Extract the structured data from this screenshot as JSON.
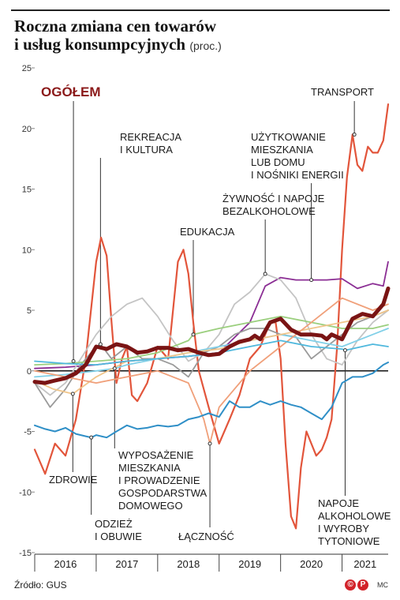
{
  "title_line1": "Roczna zmiana cen towarów",
  "title_line2": "i usług konsumpcyjnych",
  "title_unit": "(proc.)",
  "source": "Źródło: GUS",
  "credit": "MC",
  "chart_data": {
    "type": "line",
    "ylim": [
      -15,
      25
    ],
    "yticks": [
      25,
      20,
      15,
      10,
      5,
      0,
      -5,
      -10,
      -15
    ],
    "x_labels": [
      "2016",
      "2017",
      "2018",
      "2019",
      "2020",
      "2021"
    ],
    "x_start": 2016,
    "x_end": 2021.75,
    "grid": false,
    "series": [
      {
        "name": "TRANSPORT",
        "color": "#e2553b",
        "width": 2.2,
        "label_value": 19.5,
        "label_x": 2021.2,
        "x": [
          2016.0,
          2016.17,
          2016.33,
          2016.5,
          2016.67,
          2016.83,
          2017.0,
          2017.08,
          2017.17,
          2017.25,
          2017.33,
          2017.42,
          2017.5,
          2017.58,
          2017.67,
          2017.83,
          2018.0,
          2018.17,
          2018.33,
          2018.42,
          2018.5,
          2018.58,
          2018.67,
          2018.83,
          2019.0,
          2019.17,
          2019.33,
          2019.5,
          2019.67,
          2019.83,
          2019.92,
          2020.0,
          2020.08,
          2020.17,
          2020.25,
          2020.33,
          2020.42,
          2020.5,
          2020.58,
          2020.67,
          2020.75,
          2020.83,
          2020.92,
          2021.0,
          2021.08,
          2021.17,
          2021.25,
          2021.33,
          2021.42,
          2021.5,
          2021.58,
          2021.67,
          2021.75
        ],
        "y": [
          -6.5,
          -8.5,
          -6,
          -7,
          -4,
          1,
          9,
          11,
          9.5,
          4,
          -1,
          1,
          2,
          -2,
          -2.5,
          -1,
          2,
          1,
          9,
          10,
          8,
          4,
          0,
          -3,
          -6,
          -4,
          -2,
          1,
          2,
          4,
          4,
          1,
          -6,
          -12,
          -13,
          -8,
          -5,
          -6,
          -7,
          -6.5,
          -5.5,
          -4,
          2,
          10,
          16,
          19.5,
          17,
          16.5,
          18.5,
          18,
          18,
          19,
          22
        ]
      },
      {
        "name": "UŻYTKOWANIE MIESZKANIA LUB DOMU I NOŚNIKI ENERGII",
        "color": "#8b2e94",
        "width": 1.8,
        "label_value": 7.5,
        "label_x": 2020.5,
        "x": [
          2016.0,
          2016.5,
          2017.0,
          2017.5,
          2018.0,
          2018.5,
          2019.0,
          2019.5,
          2019.75,
          2020.0,
          2020.25,
          2020.5,
          2020.75,
          2021.0,
          2021.25,
          2021.5,
          2021.67,
          2021.75
        ],
        "y": [
          0.2,
          0.3,
          0.5,
          0.8,
          1.0,
          1.2,
          1.5,
          4.0,
          7.0,
          7.7,
          7.5,
          7.5,
          7.5,
          7.6,
          6.8,
          7.2,
          7.0,
          9.0
        ]
      },
      {
        "name": "ŻYWNOŚĆ I NAPOJE BEZALKOHOLOWE",
        "color": "#c4c4c4",
        "width": 1.8,
        "label_value": 8.0,
        "label_x": 2019.75,
        "x": [
          2016.0,
          2016.25,
          2016.5,
          2016.75,
          2017.0,
          2017.25,
          2017.5,
          2017.75,
          2018.0,
          2018.25,
          2018.5,
          2018.75,
          2019.0,
          2019.25,
          2019.5,
          2019.67,
          2019.75,
          2020.0,
          2020.25,
          2020.5,
          2020.75,
          2021.0,
          2021.25,
          2021.5,
          2021.75
        ],
        "y": [
          -1.0,
          -2.0,
          -1.0,
          1.0,
          3.0,
          4.5,
          5.5,
          6.0,
          4.5,
          2.5,
          0.8,
          1.5,
          3.0,
          5.5,
          6.5,
          7.5,
          8.0,
          7.5,
          6.0,
          3.0,
          1.0,
          0.5,
          2.5,
          4.0,
          5.0
        ]
      },
      {
        "name": "REKREACJA I KULTURA",
        "color": "#9a9a9a",
        "width": 1.8,
        "label_value": 2.2,
        "label_x": 2017.07,
        "x": [
          2016.0,
          2016.25,
          2016.5,
          2016.75,
          2017.0,
          2017.07,
          2017.25,
          2017.5,
          2017.75,
          2018.0,
          2018.25,
          2018.5,
          2018.75,
          2019.0,
          2019.25,
          2019.5,
          2019.75,
          2020.0,
          2020.25,
          2020.5,
          2020.75,
          2021.0,
          2021.25,
          2021.5,
          2021.75
        ],
        "y": [
          -1.0,
          -3.0,
          -1.5,
          0.5,
          2.0,
          2.2,
          1.0,
          2.0,
          1.0,
          1.0,
          0.5,
          -0.5,
          1.5,
          2.0,
          3.0,
          3.5,
          3.5,
          3.0,
          2.8,
          1.0,
          2.0,
          3.0,
          4.0,
          4.5,
          5.0
        ]
      },
      {
        "name": "EDUKACJA",
        "color": "#9bcf7e",
        "width": 1.8,
        "label_value": 3.0,
        "label_x": 2018.58,
        "x": [
          2016.0,
          2016.5,
          2017.0,
          2017.5,
          2018.0,
          2018.5,
          2018.58,
          2019.0,
          2019.5,
          2020.0,
          2020.5,
          2021.0,
          2021.5,
          2021.75
        ],
        "y": [
          0.5,
          0.6,
          0.8,
          1.0,
          1.5,
          2.5,
          3.0,
          3.5,
          4.0,
          4.5,
          4.0,
          3.5,
          3.5,
          3.8
        ]
      },
      {
        "name": "WYPOSAŻENIE MIESZKANIA I PROWADZENIE GOSPODARSTWA DOMOWEGO",
        "color": "#82d0e8",
        "width": 1.8,
        "label_value": 0.2,
        "label_x": 2017.3,
        "x": [
          2016.0,
          2016.5,
          2017.0,
          2017.3,
          2017.5,
          2018.0,
          2018.5,
          2019.0,
          2019.5,
          2020.0,
          2020.5,
          2021.0,
          2021.5,
          2021.75
        ],
        "y": [
          -0.5,
          -0.3,
          0.0,
          0.2,
          0.5,
          1.0,
          1.5,
          2.0,
          2.5,
          3.0,
          2.5,
          2.0,
          3.0,
          3.5
        ]
      },
      {
        "name": "ZDROWIE",
        "color": "#f0c58a",
        "width": 1.8,
        "label_value": -1.9,
        "label_x": 2016.62,
        "x": [
          2016.0,
          2016.3,
          2016.62,
          2017.0,
          2017.5,
          2018.0,
          2018.5,
          2019.0,
          2019.5,
          2020.0,
          2020.5,
          2021.0,
          2021.5,
          2021.75
        ],
        "y": [
          -0.8,
          -1.5,
          -1.9,
          -0.5,
          0.8,
          1.0,
          1.5,
          1.8,
          2.5,
          3.0,
          3.5,
          4.0,
          4.5,
          5.0
        ]
      },
      {
        "name": "ŁĄCZNOŚĆ",
        "color": "#f0a07a",
        "width": 1.8,
        "label_value": -6.0,
        "label_x": 2018.85,
        "x": [
          2016.0,
          2016.5,
          2017.0,
          2017.5,
          2018.0,
          2018.5,
          2018.75,
          2018.85,
          2019.0,
          2019.5,
          2020.0,
          2020.5,
          2021.0,
          2021.5,
          2021.75
        ],
        "y": [
          0.0,
          -0.5,
          -1.0,
          -0.5,
          0.0,
          -1.0,
          -4.0,
          -6.0,
          -3.0,
          0.0,
          2.0,
          4.0,
          6.0,
          5.0,
          5.5
        ]
      },
      {
        "name": "ODZIEŻ I OBUWIE",
        "color": "#2f8fc7",
        "width": 2.0,
        "label_value": -5.5,
        "label_x": 2016.92,
        "x": [
          2016.0,
          2016.17,
          2016.33,
          2016.5,
          2016.67,
          2016.83,
          2016.92,
          2017.0,
          2017.17,
          2017.33,
          2017.5,
          2017.67,
          2017.83,
          2018.0,
          2018.17,
          2018.33,
          2018.5,
          2018.67,
          2018.83,
          2019.0,
          2019.17,
          2019.33,
          2019.5,
          2019.67,
          2019.83,
          2020.0,
          2020.17,
          2020.33,
          2020.5,
          2020.67,
          2020.83,
          2021.0,
          2021.17,
          2021.33,
          2021.5,
          2021.67,
          2021.75
        ],
        "y": [
          -4.5,
          -4.8,
          -5.0,
          -4.7,
          -5.2,
          -5.4,
          -5.5,
          -5.3,
          -5.5,
          -5.0,
          -4.5,
          -4.8,
          -4.7,
          -4.5,
          -4.6,
          -4.5,
          -4.0,
          -3.8,
          -3.5,
          -3.8,
          -2.5,
          -3.0,
          -3.0,
          -2.5,
          -2.8,
          -2.5,
          -2.8,
          -3.0,
          -3.5,
          -4.0,
          -3.0,
          -1.0,
          -0.5,
          -0.5,
          -0.2,
          0.5,
          0.7
        ]
      },
      {
        "name": "NAPOJE ALKOHOLOWE I WYROBY TYTONIOWE",
        "color": "#4fb8dd",
        "width": 1.8,
        "label_value": 1.7,
        "label_x": 2021.05,
        "x": [
          2016.0,
          2016.5,
          2017.0,
          2017.5,
          2018.0,
          2018.5,
          2019.0,
          2019.5,
          2020.0,
          2020.5,
          2021.0,
          2021.05,
          2021.5,
          2021.75
        ],
        "y": [
          0.8,
          0.6,
          0.5,
          0.8,
          1.0,
          1.2,
          1.5,
          2.0,
          2.5,
          2.0,
          1.8,
          1.7,
          2.2,
          2.0
        ]
      },
      {
        "name": "OGÓŁEM",
        "color": "#7a1414",
        "width": 5.0,
        "label_value": 0.8,
        "label_x": 2016.63,
        "x": [
          2016.0,
          2016.17,
          2016.33,
          2016.5,
          2016.67,
          2016.83,
          2017.0,
          2017.17,
          2017.33,
          2017.5,
          2017.67,
          2017.83,
          2018.0,
          2018.17,
          2018.33,
          2018.5,
          2018.67,
          2018.83,
          2019.0,
          2019.17,
          2019.33,
          2019.5,
          2019.58,
          2019.67,
          2019.75,
          2019.83,
          2020.0,
          2020.17,
          2020.33,
          2020.5,
          2020.67,
          2020.75,
          2020.83,
          2021.0,
          2021.17,
          2021.33,
          2021.5,
          2021.67,
          2021.75
        ],
        "y": [
          -0.9,
          -1.0,
          -0.8,
          -0.6,
          -0.2,
          0.5,
          2.0,
          1.8,
          2.2,
          2.0,
          1.5,
          1.6,
          1.9,
          1.9,
          1.7,
          1.8,
          1.5,
          1.3,
          1.4,
          2.0,
          2.4,
          2.6,
          2.9,
          2.6,
          3.3,
          4.0,
          4.3,
          3.4,
          3.0,
          3.0,
          2.9,
          2.6,
          3.0,
          2.6,
          4.3,
          4.7,
          4.5,
          5.5,
          6.8
        ]
      }
    ]
  },
  "labels": {
    "ogolem": "OGÓŁEM",
    "transport": "TRANSPORT",
    "rekreacja_1": "REKREACJA",
    "rekreacja_2": "I KULTURA",
    "uzytkowanie_1": "UŻYTKOWANIE",
    "uzytkowanie_2": "MIESZKANIA",
    "uzytkowanie_3": "LUB DOMU",
    "uzytkowanie_4": "I NOŚNIKI ENERGII",
    "zywnosc_1": "ŻYWNOŚĆ I NAPOJE",
    "zywnosc_2": "BEZALKOHOLOWE",
    "edukacja": "EDUKACJA",
    "wyposazenie_1": "WYPOSAŻENIE",
    "wyposazenie_2": "MIESZKANIA",
    "wyposazenie_3": "I PROWADZENIE",
    "wyposazenie_4": "GOSPODARSTWA",
    "wyposazenie_5": "DOMOWEGO",
    "zdrowie": "ZDROWIE",
    "odziez_1": "ODZIEŻ",
    "odziez_2": "I OBUWIE",
    "lacznosc": "ŁĄCZNOŚĆ",
    "napoje_1": "NAPOJE",
    "napoje_2": "ALKOHOLOWE",
    "napoje_3": "I WYROBY",
    "napoje_4": "TYTONIOWE"
  }
}
